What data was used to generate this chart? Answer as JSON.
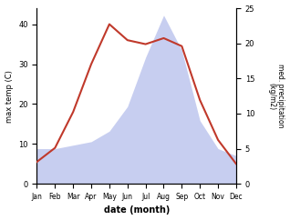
{
  "months": [
    "Jan",
    "Feb",
    "Mar",
    "Apr",
    "May",
    "Jun",
    "Jul",
    "Aug",
    "Sep",
    "Oct",
    "Nov",
    "Dec"
  ],
  "month_positions": [
    1,
    2,
    3,
    4,
    5,
    6,
    7,
    8,
    9,
    10,
    11,
    12
  ],
  "temperature": [
    5.5,
    9.0,
    18.0,
    30.0,
    40.0,
    36.0,
    35.0,
    36.5,
    34.5,
    21.0,
    11.0,
    5.0
  ],
  "precipitation": [
    5.0,
    5.0,
    5.5,
    6.0,
    7.5,
    11.0,
    18.0,
    24.0,
    19.0,
    9.0,
    5.0,
    4.0
  ],
  "temp_color": "#c0392b",
  "precip_color": "#aab4e8",
  "ylabel_left": "max temp (C)",
  "ylabel_right": "med. precipitation\n(kg/m2)",
  "xlabel": "date (month)",
  "ylim_left": [
    0,
    44
  ],
  "ylim_right": [
    0,
    25
  ],
  "yticks_left": [
    0,
    10,
    20,
    30,
    40
  ],
  "yticks_right": [
    0,
    5,
    10,
    15,
    20,
    25
  ],
  "background_color": "#ffffff"
}
